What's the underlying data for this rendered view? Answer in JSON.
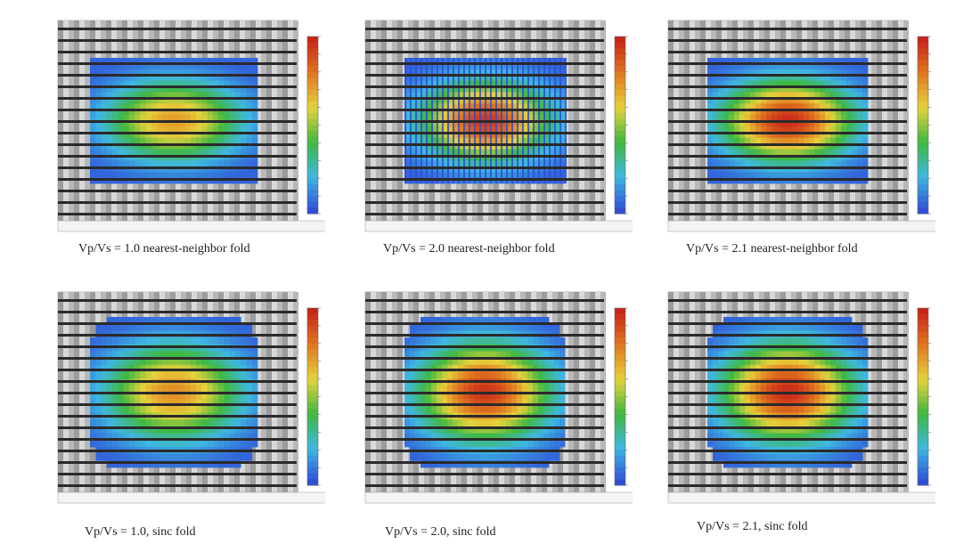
{
  "chart_data": [
    {
      "type": "heatmap",
      "title": "Vp/Vs = 1.0 nearest-neighbor fold",
      "method": "nearest-neighbor",
      "vpvs": 1.0,
      "peak_level": 0.72,
      "grid_overlay": "none",
      "footprint_shape": "rectangle"
    },
    {
      "type": "heatmap",
      "title": "Vp/Vs = 2.0 nearest-neighbor fold",
      "method": "nearest-neighbor",
      "vpvs": 2.0,
      "peak_level": 0.95,
      "grid_overlay": "vertical-stripes",
      "footprint_shape": "rectangle"
    },
    {
      "type": "heatmap",
      "title": "Vp/Vs = 2.1 nearest-neighbor fold",
      "method": "nearest-neighbor",
      "vpvs": 2.1,
      "peak_level": 0.98,
      "grid_overlay": "none",
      "footprint_shape": "rectangle"
    },
    {
      "type": "heatmap",
      "title": "Vp/Vs = 1.0, sinc fold",
      "method": "sinc",
      "vpvs": 1.0,
      "peak_level": 0.75,
      "grid_overlay": "none",
      "footprint_shape": "rounded"
    },
    {
      "type": "heatmap",
      "title": "Vp/Vs = 2.0, sinc fold",
      "method": "sinc",
      "vpvs": 2.0,
      "peak_level": 0.96,
      "grid_overlay": "none",
      "footprint_shape": "rounded"
    },
    {
      "type": "heatmap",
      "title": "Vp/Vs = 2.1, sinc fold",
      "method": "sinc",
      "vpvs": 2.1,
      "peak_level": 0.98,
      "grid_overlay": "none",
      "footprint_shape": "rounded"
    }
  ],
  "colors": {
    "blue": "#2f4fd8",
    "cyan": "#3fb8e0",
    "green": "#3fb83f",
    "yellow": "#e6d23c",
    "orange": "#e07820",
    "red": "#c82418",
    "stripe_dark": "#2a2a2a",
    "stripe_light": "#cfcfcf"
  }
}
